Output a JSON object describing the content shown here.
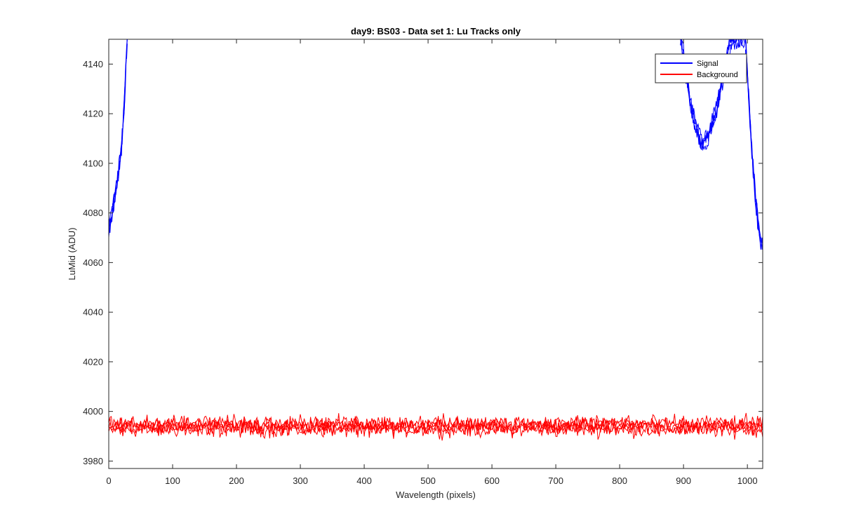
{
  "chart_data": {
    "type": "line",
    "title": "day9: BS03 - Data set 1: Lu Tracks only",
    "xlabel": "Wavelength (pixels)",
    "ylabel": "LuMid (ADU)",
    "xlim": [
      0,
      1024
    ],
    "ylim": [
      3977,
      4150
    ],
    "xticks": [
      0,
      100,
      200,
      300,
      400,
      500,
      600,
      700,
      800,
      900,
      1000
    ],
    "yticks": [
      3980,
      4000,
      4020,
      4040,
      4060,
      4080,
      4100,
      4120,
      4140
    ],
    "grid": false,
    "legend_position": "top-right",
    "series": [
      {
        "name": "Signal",
        "color": "#0000ff",
        "segments": [
          {
            "x": [
              0,
              4,
              8,
              12,
              16,
              20,
              24,
              27,
              29
            ],
            "y": [
              4073,
              4078,
              4085,
              4090,
              4098,
              4107,
              4122,
              4140,
              4150
            ]
          },
          {
            "x": [
              895,
              900,
              905,
              910,
              915,
              920,
              925,
              930,
              935,
              940,
              945,
              950,
              955,
              960,
              965,
              970,
              975,
              985,
              997
            ],
            "y": [
              4150,
              4144,
              4134,
              4125,
              4119,
              4114,
              4110,
              4108,
              4109,
              4112,
              4116,
              4120,
              4126,
              4132,
              4139,
              4146,
              4150,
              4150,
              4150
            ]
          },
          {
            "x": [
              997,
              1000,
              1004,
              1008,
              1012,
              1016,
              1020,
              1024
            ],
            "y": [
              4150,
              4136,
              4118,
              4102,
              4088,
              4078,
              4070,
              4066
            ]
          }
        ]
      },
      {
        "name": "Background",
        "color": "#ff0000",
        "mean": 3994,
        "noise_range": [
          3988,
          4000
        ]
      }
    ]
  }
}
